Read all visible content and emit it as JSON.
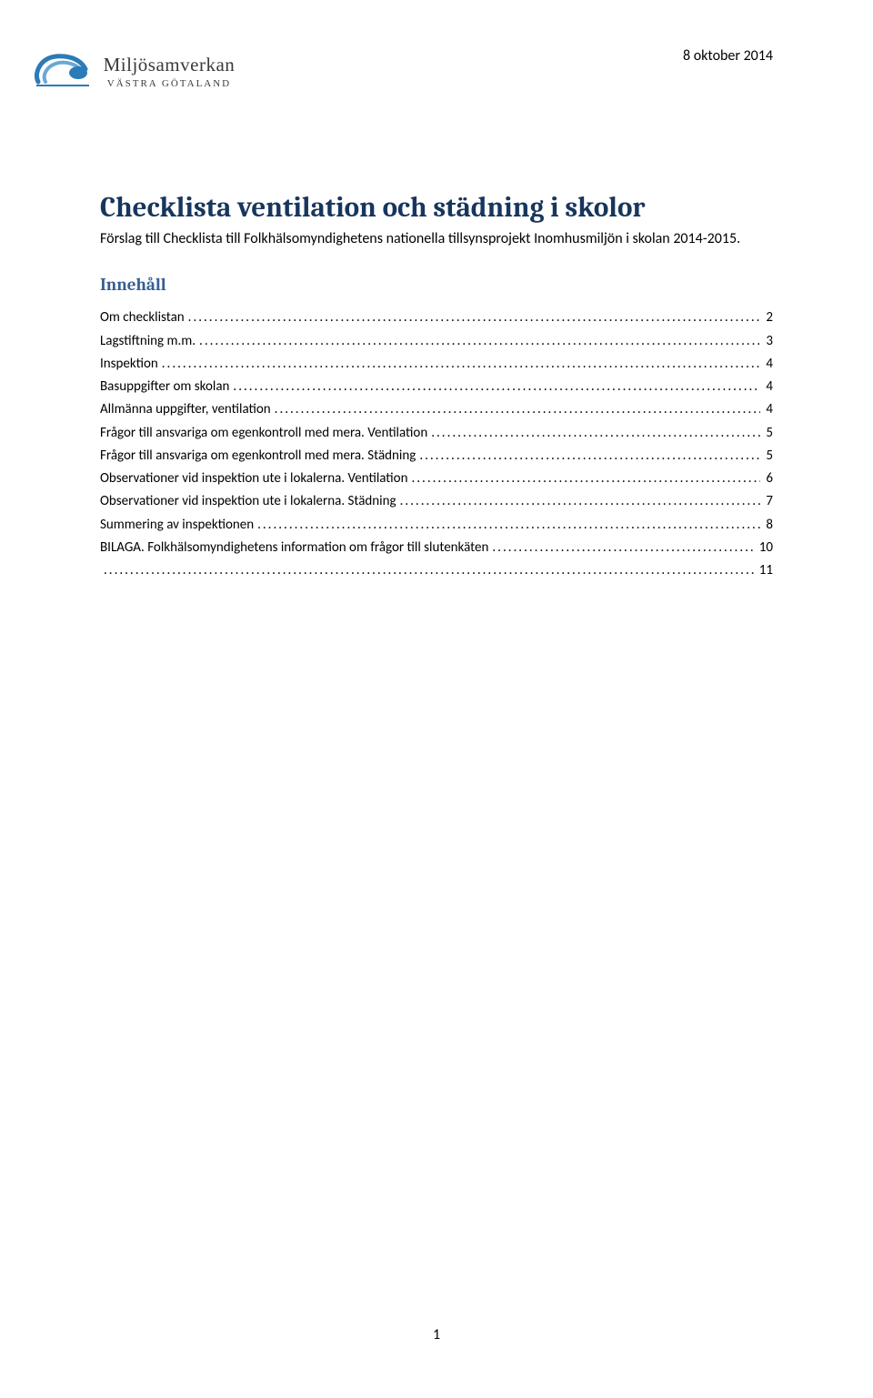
{
  "header": {
    "date": "8 oktober 2014",
    "logo_main": "Miljösamverkan",
    "logo_sub": "VÄSTRA GÖTALAND"
  },
  "title": "Checklista ventilation och städning i skolor",
  "subtitle": "Förslag till Checklista till Folkhälsomyndighetens nationella tillsynsprojekt Inomhusmiljön i skolan 2014-2015.",
  "toc_heading": "Innehåll",
  "toc": [
    {
      "label": "Om checklistan",
      "page": "2"
    },
    {
      "label": "Lagstiftning m.m.",
      "page": "3"
    },
    {
      "label": "Inspektion",
      "page": "4"
    },
    {
      "label": "Basuppgifter om skolan",
      "page": "4"
    },
    {
      "label": "Allmänna uppgifter, ventilation",
      "page": "4"
    },
    {
      "label": "Frågor till ansvariga om egenkontroll med mera. Ventilation",
      "page": "5"
    },
    {
      "label": "Frågor till ansvariga om egenkontroll med mera. Städning",
      "page": "5"
    },
    {
      "label": "Observationer vid inspektion ute i lokalerna. Ventilation",
      "page": "6"
    },
    {
      "label": "Observationer vid inspektion ute i lokalerna. Städning",
      "page": "7"
    },
    {
      "label": "Summering av inspektionen",
      "page": "8"
    },
    {
      "label": "BILAGA. Folkhälsomyndighetens information om frågor till slutenkäten",
      "page": "10"
    },
    {
      "label": "",
      "page": "11",
      "continuation": true
    }
  ],
  "page_number": "1",
  "colors": {
    "title_color": "#17365d",
    "heading_color": "#365f91",
    "text_color": "#000000",
    "logo_blue": "#2b7bb8"
  }
}
